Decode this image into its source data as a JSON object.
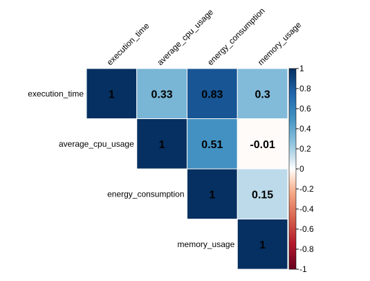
{
  "chart_data": {
    "type": "heatmap",
    "variant": "correlation-upper",
    "rows": [
      "execution_time",
      "average_cpu_usage",
      "energy_consumption",
      "memory_usage"
    ],
    "columns": [
      "execution_time",
      "average_cpu_usage",
      "energy_consumption",
      "memory_usage"
    ],
    "matrix": [
      [
        1,
        0.33,
        0.83,
        0.3
      ],
      [
        null,
        1,
        0.51,
        -0.01
      ],
      [
        null,
        null,
        1,
        0.15
      ],
      [
        null,
        null,
        null,
        1
      ]
    ],
    "value_labels": [
      [
        "1",
        "0.33",
        "0.83",
        "0.3"
      ],
      [
        null,
        "1",
        "0.51",
        "-0.01"
      ],
      [
        null,
        null,
        "1",
        "0.15"
      ],
      [
        null,
        null,
        null,
        "1"
      ]
    ],
    "color_scale": {
      "range": [
        -1,
        1
      ],
      "ticks": [
        "1",
        "0.8",
        "0.6",
        "0.4",
        "0.2",
        "0",
        "-0.2",
        "-0.4",
        "-0.6",
        "-0.8",
        "-1"
      ],
      "stops": [
        {
          "value": -1,
          "color": "#67001f"
        },
        {
          "value": -0.75,
          "color": "#b2182b"
        },
        {
          "value": -0.5,
          "color": "#d6604d"
        },
        {
          "value": -0.25,
          "color": "#f4a582"
        },
        {
          "value": -0.1,
          "color": "#fddbc7"
        },
        {
          "value": 0,
          "color": "#ffffff"
        },
        {
          "value": 0.1,
          "color": "#d1e5f0"
        },
        {
          "value": 0.25,
          "color": "#92c5de"
        },
        {
          "value": 0.5,
          "color": "#4393c3"
        },
        {
          "value": 0.75,
          "color": "#2166ac"
        },
        {
          "value": 1,
          "color": "#053061"
        }
      ]
    },
    "legend_position": "right",
    "grid": true
  }
}
